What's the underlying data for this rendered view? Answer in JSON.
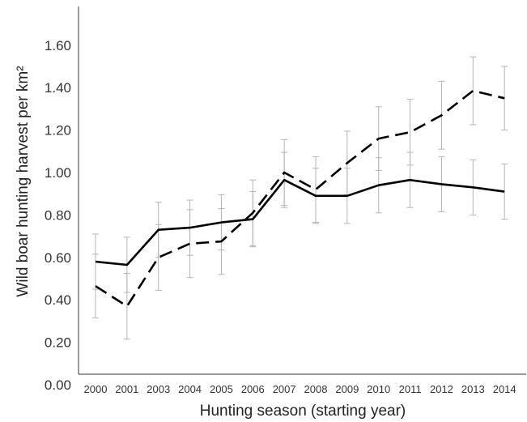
{
  "chart_data": {
    "type": "line",
    "title": "",
    "xlabel": "Hunting season (starting year)",
    "ylabel": "Wild boar hunting harvest per km²",
    "categories": [
      "2000",
      "2001",
      "2003",
      "2004",
      "2005",
      "2006",
      "2007",
      "2008",
      "2009",
      "2010",
      "2011",
      "2012",
      "2013",
      "2014"
    ],
    "ylim": [
      0,
      1.8
    ],
    "yticks": [
      "0.00",
      "0.20",
      "0.40",
      "0.60",
      "0.80",
      "1.00",
      "1.20",
      "1.40",
      "1.60"
    ],
    "grid": false,
    "legend": "none",
    "series": [
      {
        "style": "solid",
        "color": "#000000",
        "values": [
          0.58,
          0.565,
          0.73,
          0.74,
          0.765,
          0.78,
          0.965,
          0.89,
          0.89,
          0.94,
          0.965,
          0.945,
          0.93,
          0.91
        ],
        "error": [
          0.13,
          0.13,
          0.13,
          0.13,
          0.13,
          0.13,
          0.13,
          0.13,
          0.13,
          0.13,
          0.13,
          0.13,
          0.13,
          0.13
        ]
      },
      {
        "style": "dashed",
        "color": "#000000",
        "values": [
          0.465,
          0.37,
          0.6,
          0.665,
          0.675,
          0.81,
          1.0,
          0.92,
          1.045,
          1.16,
          1.19,
          1.27,
          1.385,
          1.35
        ],
        "error": [
          0.15,
          0.155,
          0.155,
          0.16,
          0.155,
          0.155,
          0.155,
          0.155,
          0.15,
          0.15,
          0.155,
          0.16,
          0.16,
          0.15
        ]
      }
    ]
  }
}
